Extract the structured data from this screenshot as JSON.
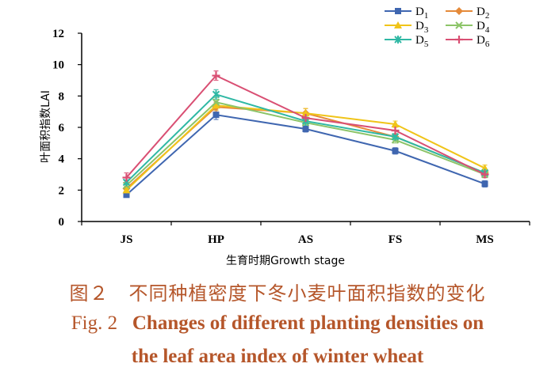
{
  "chart_data": {
    "type": "line",
    "xlabel": "生育时期Growth stage",
    "ylabel": "叶面积指数LAI",
    "ylim": [
      0,
      12
    ],
    "yticks": [
      "0",
      "2",
      "4",
      "6",
      "8",
      "10",
      "12"
    ],
    "categories": [
      "JS",
      "HP",
      "AS",
      "FS",
      "MS"
    ],
    "series": [
      {
        "name": "D1",
        "base": "D",
        "sub": "1",
        "color": "#3f66b0",
        "marker": "square",
        "values": [
          1.7,
          6.8,
          5.9,
          4.5,
          2.4
        ]
      },
      {
        "name": "D2",
        "base": "D",
        "sub": "2",
        "color": "#e58a3a",
        "marker": "diamond",
        "values": [
          2.1,
          7.3,
          6.9,
          5.4,
          3.1
        ]
      },
      {
        "name": "D3",
        "base": "D",
        "sub": "3",
        "color": "#f0c419",
        "marker": "triangle",
        "values": [
          2.0,
          7.4,
          6.9,
          6.2,
          3.4
        ]
      },
      {
        "name": "D4",
        "base": "D",
        "sub": "4",
        "color": "#8cc468",
        "marker": "x",
        "values": [
          2.3,
          7.6,
          6.3,
          5.2,
          3.0
        ]
      },
      {
        "name": "D5",
        "base": "D",
        "sub": "5",
        "color": "#2fb8a4",
        "marker": "star",
        "values": [
          2.5,
          8.1,
          6.4,
          5.4,
          3.1
        ]
      },
      {
        "name": "D6",
        "base": "D",
        "sub": "6",
        "color": "#d94f73",
        "marker": "plus",
        "values": [
          2.8,
          9.3,
          6.6,
          5.8,
          3.0
        ]
      }
    ],
    "errors": [
      [
        0.15,
        0.3,
        0.2,
        0.2,
        0.2
      ],
      [
        0.15,
        0.3,
        0.3,
        0.2,
        0.2
      ],
      [
        0.15,
        0.3,
        0.3,
        0.2,
        0.2
      ],
      [
        0.15,
        0.3,
        0.3,
        0.2,
        0.2
      ],
      [
        0.15,
        0.3,
        0.3,
        0.2,
        0.2
      ],
      [
        0.3,
        0.3,
        0.3,
        0.3,
        0.2
      ]
    ]
  },
  "caption": {
    "cn": "图２　不同种植密度下冬小麦叶面积指数的变化",
    "en_line1_prefix": "Fig. 2",
    "en_line1_rest": "Changes of different planting densities on",
    "en_line2": "the leaf area index of winter wheat"
  }
}
